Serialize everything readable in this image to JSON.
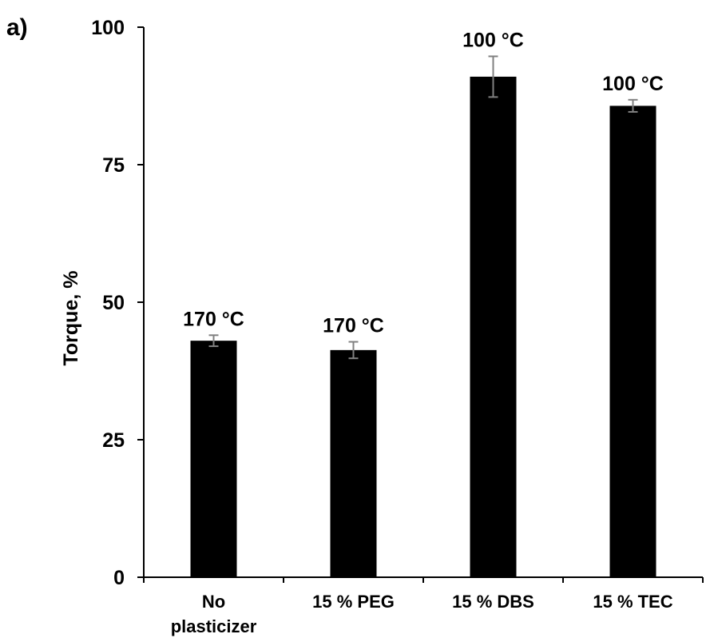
{
  "panel_label": "a)",
  "chart_data": {
    "type": "bar",
    "title": "",
    "xlabel": "",
    "ylabel": "Torque, %",
    "ylim": [
      0,
      100
    ],
    "yticks": [
      0,
      25,
      50,
      75,
      100
    ],
    "grid": false,
    "categories": [
      [
        "No",
        "plasticizer"
      ],
      [
        "15 % PEG"
      ],
      [
        "15 % DBS"
      ],
      [
        "15 % TEC"
      ]
    ],
    "values": [
      43.0,
      41.3,
      91.0,
      85.7
    ],
    "errors": [
      1.0,
      1.5,
      3.7,
      1.1
    ],
    "bar_labels": [
      "170 °C",
      "170 °C",
      "100 °C",
      "100 °C"
    ],
    "colors": {
      "bar": "#000000",
      "error_bar": "#808080",
      "axis": "#000000"
    }
  }
}
